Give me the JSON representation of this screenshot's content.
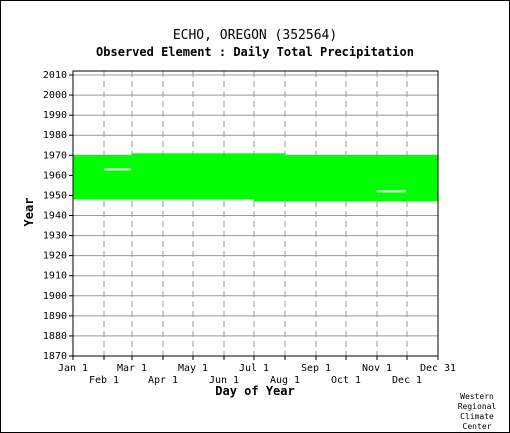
{
  "chart_data": {
    "type": "heatmap",
    "title": "ECHO, OREGON   (352564)",
    "subtitle": "Observed Element : Daily Total Precipitation",
    "xlabel": "Day of Year",
    "ylabel": "Year",
    "ylim": [
      1870,
      2012
    ],
    "xlim": [
      1,
      366
    ],
    "y_ticks": [
      1870,
      1880,
      1890,
      1900,
      1910,
      1920,
      1930,
      1940,
      1950,
      1960,
      1970,
      1980,
      1990,
      2000,
      2010
    ],
    "x_ticks_upper": [
      {
        "label": "Jan 1",
        "day": 1
      },
      {
        "label": "Mar 1",
        "day": 60
      },
      {
        "label": "May 1",
        "day": 121
      },
      {
        "label": "Jul 1",
        "day": 182
      },
      {
        "label": "Sep 1",
        "day": 244
      },
      {
        "label": "Nov 1",
        "day": 305
      },
      {
        "label": "Dec 31",
        "day": 366
      }
    ],
    "x_ticks_lower": [
      {
        "label": "Feb 1",
        "day": 32
      },
      {
        "label": "Apr 1",
        "day": 91
      },
      {
        "label": "Jun 1",
        "day": 152
      },
      {
        "label": "Aug 1",
        "day": 213
      },
      {
        "label": "Oct 1",
        "day": 274
      },
      {
        "label": "Dec 1",
        "day": 335
      }
    ],
    "grid": true,
    "colors": {
      "data": "#00ff00",
      "gridline_horizontal": "#999999",
      "gridline_vertical": "#999999",
      "axes": "#000000"
    },
    "coverage": [
      {
        "day_start": 1,
        "day_end": 32,
        "year_start": 1948,
        "year_end": 1970
      },
      {
        "day_start": 32,
        "day_end": 60,
        "year_start": 1948,
        "year_end": 1970
      },
      {
        "day_start": 60,
        "day_end": 182,
        "year_start": 1948,
        "year_end": 1971
      },
      {
        "day_start": 182,
        "day_end": 213,
        "year_start": 1947,
        "year_end": 1971
      },
      {
        "day_start": 213,
        "day_end": 366,
        "year_start": 1947,
        "year_end": 1970
      }
    ],
    "gaps": [
      {
        "day_start": 32,
        "day_end": 59,
        "year": 1963
      },
      {
        "day_start": 305,
        "day_end": 334,
        "year": 1952
      }
    ]
  },
  "credit": [
    "Western",
    "Regional",
    "Climate",
    "Center"
  ]
}
